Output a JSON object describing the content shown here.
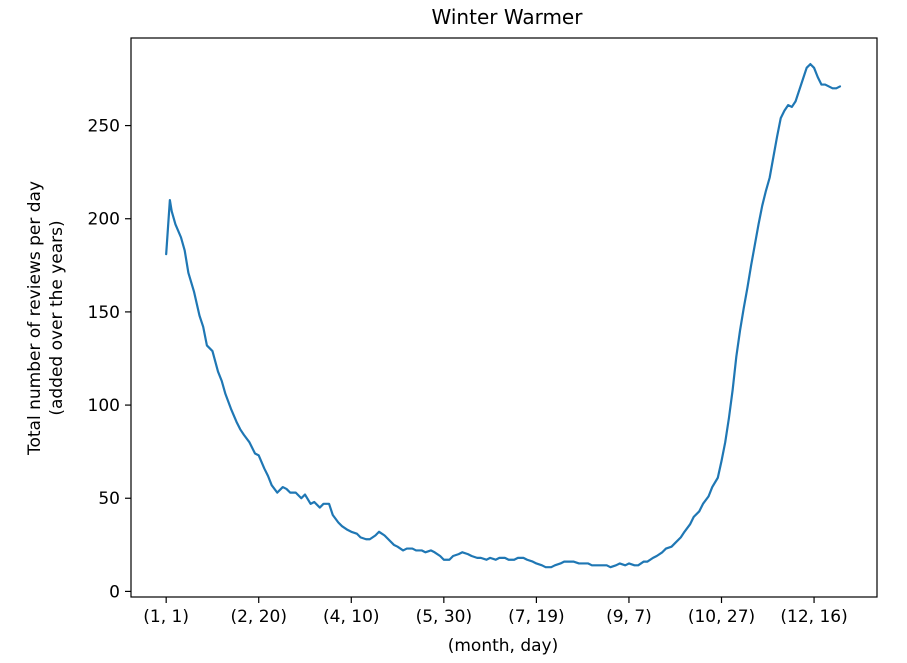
{
  "chart_data": {
    "type": "line",
    "title": "Winter Warmer",
    "xlabel": "(month, day)",
    "ylabel_lines": [
      "Total number of reviews per day",
      "(added over the years)"
    ],
    "x_tick_labels": [
      "(1, 1)",
      "(2, 20)",
      "(4, 10)",
      "(5, 30)",
      "(7, 19)",
      "(9, 7)",
      "(10, 27)",
      "(12, 16)"
    ],
    "x_tick_values": [
      0,
      50,
      100,
      150,
      200,
      250,
      300,
      350
    ],
    "xlim": [
      -19,
      384
    ],
    "y_ticks": [
      0,
      50,
      100,
      150,
      200,
      250
    ],
    "ylim": [
      -3,
      297
    ],
    "grid": false,
    "legend": "none",
    "line_color": "#1f77b4",
    "series": [
      {
        "x": [
          0,
          2,
          3,
          5,
          8,
          10,
          12,
          15,
          18,
          20,
          22,
          25,
          28,
          30,
          32,
          35,
          38,
          40,
          42,
          45,
          48,
          50,
          53,
          55,
          57,
          60,
          63,
          65,
          67,
          70,
          73,
          75,
          78,
          80,
          83,
          85,
          88,
          90,
          93,
          95,
          98,
          100,
          103,
          105,
          108,
          110,
          113,
          115,
          118,
          120,
          123,
          125,
          128,
          130,
          133,
          135,
          138,
          140,
          143,
          145,
          148,
          150,
          153,
          155,
          158,
          160,
          163,
          165,
          168,
          170,
          173,
          175,
          178,
          180,
          183,
          185,
          188,
          190,
          193,
          195,
          198,
          200,
          203,
          205,
          208,
          210,
          213,
          215,
          218,
          220,
          223,
          225,
          228,
          230,
          233,
          235,
          238,
          240,
          243,
          245,
          248,
          250,
          253,
          255,
          258,
          260,
          263,
          265,
          268,
          270,
          273,
          275,
          278,
          280,
          283,
          285,
          288,
          290,
          293,
          295,
          298,
          300,
          302,
          304,
          306,
          308,
          310,
          312,
          314,
          316,
          318,
          320,
          322,
          324,
          326,
          328,
          330,
          332,
          334,
          336,
          338,
          340,
          342,
          344,
          346,
          348,
          350,
          352,
          354,
          356,
          358,
          360,
          362,
          364
        ],
        "y": [
          181,
          210,
          204,
          197,
          190,
          183,
          171,
          161,
          148,
          142,
          132,
          129,
          118,
          113,
          106,
          98,
          91,
          87,
          84,
          80,
          74,
          73,
          66,
          62,
          57,
          53,
          56,
          55,
          53,
          53,
          50,
          52,
          47,
          48,
          45,
          47,
          47,
          41,
          37,
          35,
          33,
          32,
          31,
          29,
          28,
          28,
          30,
          32,
          30,
          28,
          25,
          24,
          22,
          23,
          23,
          22,
          22,
          21,
          22,
          21,
          19,
          17,
          17,
          19,
          20,
          21,
          20,
          19,
          18,
          18,
          17,
          18,
          17,
          18,
          18,
          17,
          17,
          18,
          18,
          17,
          16,
          15,
          14,
          13,
          13,
          14,
          15,
          16,
          16,
          16,
          15,
          15,
          15,
          14,
          14,
          14,
          14,
          13,
          14,
          15,
          14,
          15,
          14,
          14,
          16,
          16,
          18,
          19,
          21,
          23,
          24,
          26,
          29,
          32,
          36,
          40,
          43,
          47,
          51,
          56,
          61,
          70,
          80,
          93,
          108,
          126,
          140,
          152,
          163,
          175,
          186,
          197,
          207,
          215,
          222,
          233,
          244,
          254,
          258,
          261,
          260,
          263,
          269,
          275,
          281,
          283,
          281,
          276,
          272,
          272,
          271,
          270,
          270,
          271
        ]
      }
    ]
  }
}
